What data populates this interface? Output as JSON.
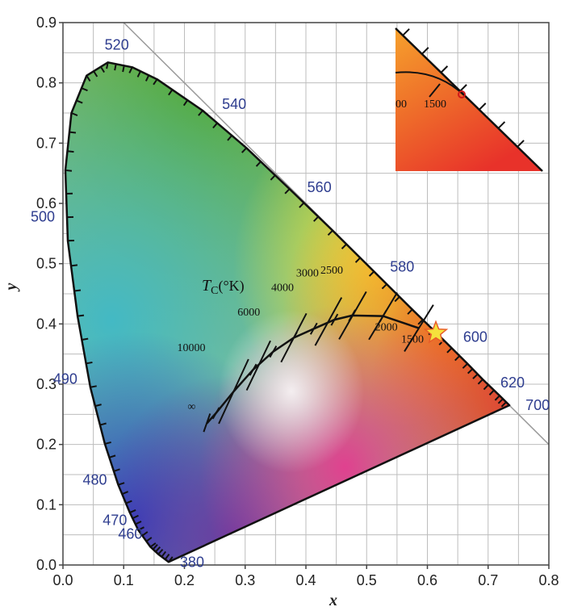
{
  "chart_data": {
    "type": "scatter",
    "title": "",
    "xlabel": "x",
    "ylabel": "y",
    "xlim": [
      0.0,
      0.8
    ],
    "ylim": [
      0.0,
      0.9
    ],
    "grid": true,
    "x_ticks": [
      "0.0",
      "0.1",
      "0.2",
      "0.3",
      "0.4",
      "0.5",
      "0.6",
      "0.7",
      "0.8"
    ],
    "y_ticks": [
      "0.0",
      "0.1",
      "0.2",
      "0.3",
      "0.4",
      "0.5",
      "0.6",
      "0.7",
      "0.8",
      "0.9"
    ],
    "spectral_locus": {
      "points": [
        {
          "nm": 380,
          "x": 0.174,
          "y": 0.005
        },
        {
          "nm": 450,
          "x": 0.157,
          "y": 0.018
        },
        {
          "nm": 460,
          "x": 0.144,
          "y": 0.03
        },
        {
          "nm": 470,
          "x": 0.124,
          "y": 0.058
        },
        {
          "nm": 475,
          "x": 0.11,
          "y": 0.087
        },
        {
          "nm": 480,
          "x": 0.091,
          "y": 0.133
        },
        {
          "nm": 485,
          "x": 0.069,
          "y": 0.201
        },
        {
          "nm": 490,
          "x": 0.045,
          "y": 0.295
        },
        {
          "nm": 495,
          "x": 0.024,
          "y": 0.413
        },
        {
          "nm": 500,
          "x": 0.008,
          "y": 0.538
        },
        {
          "nm": 505,
          "x": 0.004,
          "y": 0.655
        },
        {
          "nm": 510,
          "x": 0.014,
          "y": 0.75
        },
        {
          "nm": 515,
          "x": 0.039,
          "y": 0.812
        },
        {
          "nm": 520,
          "x": 0.074,
          "y": 0.834
        },
        {
          "nm": 525,
          "x": 0.114,
          "y": 0.826
        },
        {
          "nm": 530,
          "x": 0.155,
          "y": 0.806
        },
        {
          "nm": 540,
          "x": 0.23,
          "y": 0.754
        },
        {
          "nm": 550,
          "x": 0.302,
          "y": 0.692
        },
        {
          "nm": 560,
          "x": 0.373,
          "y": 0.624
        },
        {
          "nm": 570,
          "x": 0.444,
          "y": 0.555
        },
        {
          "nm": 580,
          "x": 0.512,
          "y": 0.487
        },
        {
          "nm": 590,
          "x": 0.575,
          "y": 0.424
        },
        {
          "nm": 600,
          "x": 0.627,
          "y": 0.373
        },
        {
          "nm": 610,
          "x": 0.666,
          "y": 0.334
        },
        {
          "nm": 620,
          "x": 0.691,
          "y": 0.308
        },
        {
          "nm": 640,
          "x": 0.719,
          "y": 0.281
        },
        {
          "nm": 700,
          "x": 0.735,
          "y": 0.265
        }
      ],
      "labels": [
        {
          "text": "380",
          "nm": 380
        },
        {
          "text": "460",
          "nm": 460
        },
        {
          "text": "470",
          "nm": 470
        },
        {
          "text": "480",
          "nm": 480
        },
        {
          "text": "490",
          "nm": 490
        },
        {
          "text": "500",
          "nm": 500
        },
        {
          "text": "520",
          "nm": 520
        },
        {
          "text": "540",
          "nm": 540
        },
        {
          "text": "560",
          "nm": 560
        },
        {
          "text": "580",
          "nm": 580
        },
        {
          "text": "600",
          "nm": 600
        },
        {
          "text": "620",
          "nm": 620
        },
        {
          "text": "700",
          "nm": 700
        }
      ]
    },
    "planckian_locus": {
      "label": "T",
      "label_subscript": "C",
      "label_unit": "(°K)",
      "points": [
        {
          "x": 0.237,
          "y": 0.235
        },
        {
          "x": 0.252,
          "y": 0.252
        },
        {
          "x": 0.281,
          "y": 0.288
        },
        {
          "x": 0.313,
          "y": 0.324
        },
        {
          "x": 0.346,
          "y": 0.354
        },
        {
          "x": 0.38,
          "y": 0.377
        },
        {
          "x": 0.413,
          "y": 0.392
        },
        {
          "x": 0.447,
          "y": 0.407
        },
        {
          "x": 0.476,
          "y": 0.414
        },
        {
          "x": 0.527,
          "y": 0.413
        },
        {
          "x": 0.586,
          "y": 0.393
        }
      ],
      "isotemperature_lines": [
        {
          "text": "∞",
          "x": 0.237,
          "y": 0.236,
          "slope": -0.35
        },
        {
          "text": "10000",
          "x": 0.281,
          "y": 0.288,
          "slope": -0.46
        },
        {
          "text": "6000",
          "x": 0.322,
          "y": 0.331,
          "slope": -0.48
        },
        {
          "text": "4000",
          "x": 0.38,
          "y": 0.377,
          "slope": -0.52
        },
        {
          "text": "3000",
          "x": 0.437,
          "y": 0.404,
          "slope": -0.55
        },
        {
          "text": "2500",
          "x": 0.477,
          "y": 0.414,
          "slope": -0.57
        },
        {
          "text": "2000",
          "x": 0.527,
          "y": 0.413,
          "slope": -0.6
        },
        {
          "text": "1500",
          "x": 0.586,
          "y": 0.393,
          "slope": -0.62
        }
      ]
    },
    "star_marker": {
      "x": 0.614,
      "y": 0.385,
      "color": "#f5e23c"
    },
    "inset": {
      "labels": [
        "00",
        "1500"
      ],
      "extent_x": [
        0.55,
        0.8
      ],
      "extent_y": [
        0.25,
        0.9
      ]
    },
    "colors": {
      "axis": "#222222",
      "grid": "#bdbdbd",
      "wavelength_labels": "#2e3d8f",
      "locus": "#111111",
      "star": "#f5e23c"
    }
  }
}
